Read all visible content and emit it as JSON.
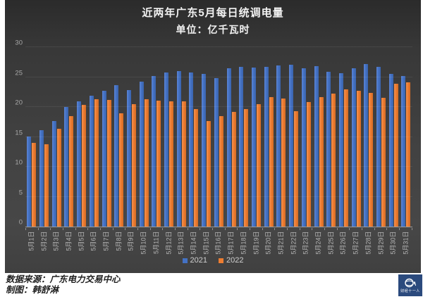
{
  "title": {
    "line1": "近两年广东5月每日统调电量",
    "line2": "单位：亿千瓦时"
  },
  "chart_data": {
    "type": "bar",
    "categories": [
      "5月1日",
      "5月2日",
      "5月3日",
      "5月4日",
      "5月5日",
      "5月6日",
      "5月7日",
      "5月8日",
      "5月9日",
      "5月10日",
      "5月11日",
      "5月12日",
      "5月13日",
      "5月14日",
      "5月15日",
      "5月16日",
      "5月17日",
      "5月18日",
      "5月19日",
      "5月20日",
      "5月21日",
      "5月22日",
      "5月23日",
      "5月24日",
      "5月25日",
      "5月26日",
      "5月27日",
      "5月28日",
      "5月29日",
      "5月30日",
      "5月31日"
    ],
    "series": [
      {
        "name": "2021",
        "color": "#4472c4",
        "values": [
          15.1,
          16.1,
          17.6,
          20.0,
          20.9,
          21.9,
          22.7,
          23.6,
          22.8,
          24.2,
          25.2,
          25.8,
          26.0,
          25.8,
          25.5,
          24.8,
          26.5,
          26.7,
          26.6,
          26.7,
          27.0,
          27.1,
          26.5,
          26.8,
          25.9,
          25.7,
          26.5,
          27.2,
          26.7,
          25.5,
          25.2
        ]
      },
      {
        "name": "2022",
        "color": "#ed7d31",
        "values": [
          14.0,
          13.8,
          16.3,
          18.5,
          20.4,
          21.3,
          21.2,
          19.0,
          20.5,
          21.3,
          21.1,
          21.0,
          20.9,
          19.7,
          17.6,
          18.5,
          19.2,
          19.7,
          20.5,
          21.6,
          21.4,
          19.3,
          20.8,
          21.7,
          22.2,
          22.9,
          22.7,
          22.4,
          21.5,
          23.9,
          24.1
        ]
      }
    ],
    "title": "近两年广东5月每日统调电量",
    "subtitle": "单位：亿千瓦时",
    "xlabel": "",
    "ylabel": "",
    "ylim": [
      0,
      30
    ],
    "yticks": [
      0,
      5,
      10,
      15,
      20,
      25,
      30
    ],
    "grid": true,
    "legend_position": "bottom"
  },
  "footer": {
    "source": "数据来源：广东电力交易中心",
    "credit": "制图：韩舒淋",
    "logo_text": "财经十一人"
  },
  "colors": {
    "panel_background": "#3f3f3f",
    "series_2021": "#4472c4",
    "series_2022": "#ed7d31",
    "axis_text": "#b5b5b5",
    "title_text": "#f2f2f2",
    "logo_background": "#2b4a7d"
  }
}
